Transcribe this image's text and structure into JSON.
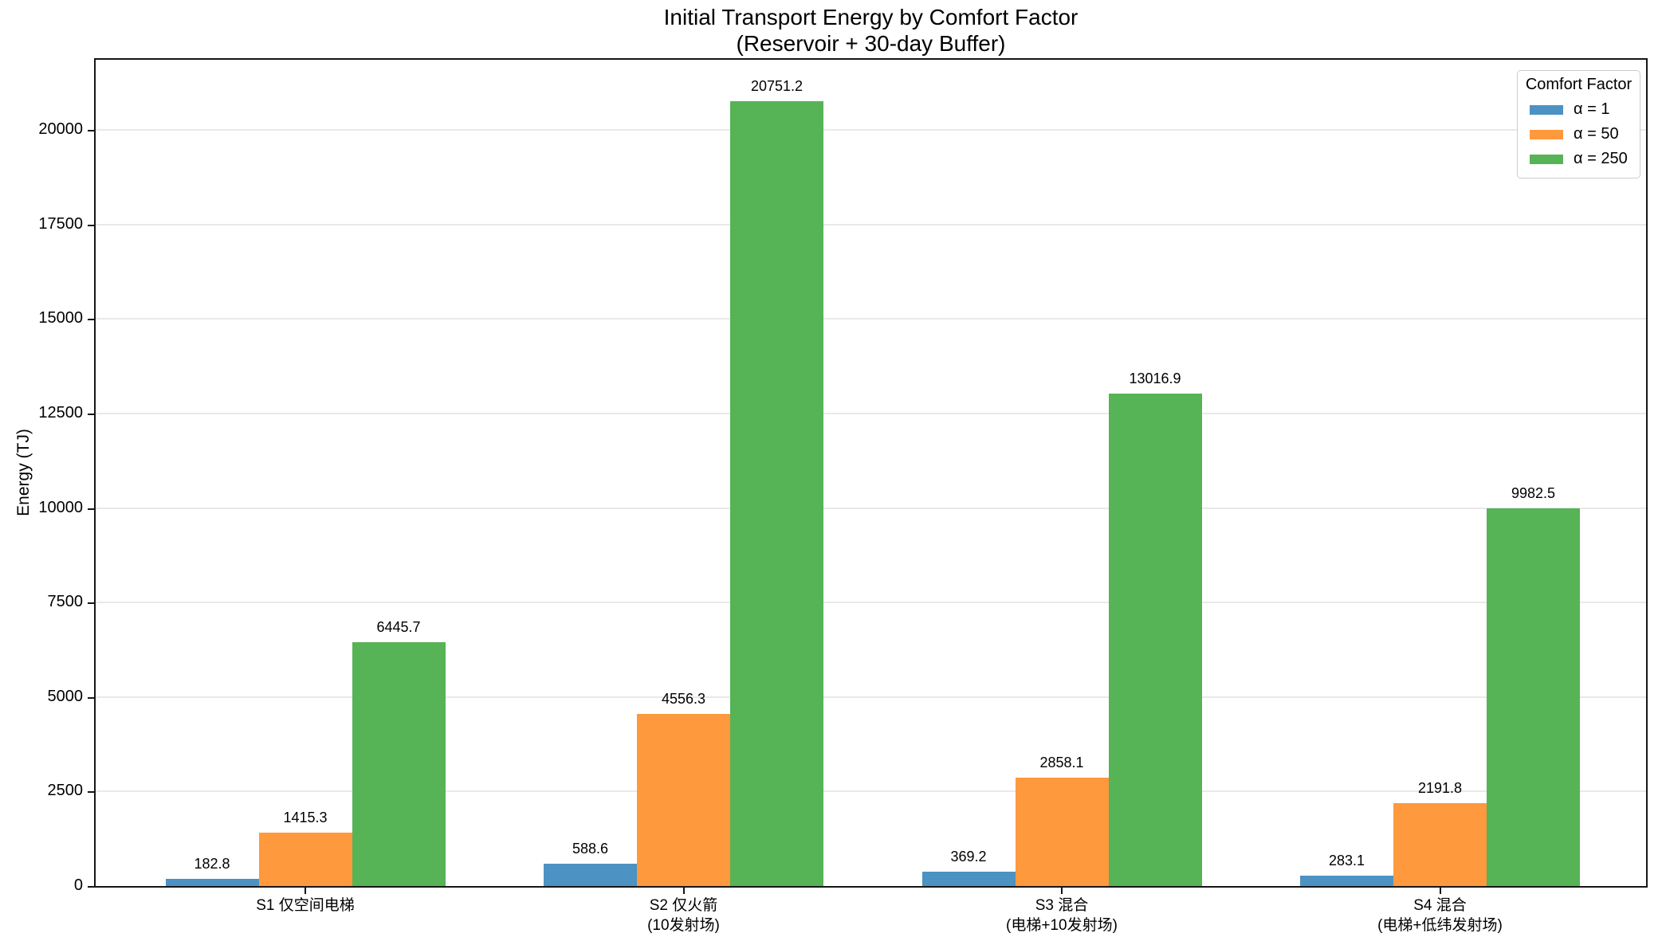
{
  "title": {
    "line1": "Initial Transport Energy by Comfort Factor",
    "line2": "(Reservoir + 30-day Buffer)"
  },
  "ylabel": "Energy (TJ)",
  "legend": {
    "title": "Comfort Factor",
    "entries": [
      {
        "label": "α = 1",
        "color": "#4C92C3"
      },
      {
        "label": "α = 50",
        "color": "#FF993E"
      },
      {
        "label": "α = 250",
        "color": "#56B356"
      }
    ]
  },
  "chart_data": {
    "type": "bar",
    "title": "Initial Transport Energy by Comfort Factor\n(Reservoir + 30-day Buffer)",
    "xlabel": "",
    "ylabel": "Energy (TJ)",
    "categories": [
      {
        "lines": [
          "S1 仅空间电梯"
        ]
      },
      {
        "lines": [
          "S2 仅火箭",
          "(10发射场)"
        ]
      },
      {
        "lines": [
          "S3 混合",
          "(电梯+10发射场)"
        ]
      },
      {
        "lines": [
          "S4 混合",
          "(电梯+低纬发射场)"
        ]
      }
    ],
    "series": [
      {
        "name": "α = 1",
        "color": "#4C92C3",
        "values": [
          182.8,
          588.6,
          369.2,
          283.1
        ]
      },
      {
        "name": "α = 50",
        "color": "#FF993E",
        "values": [
          1415.3,
          4556.3,
          2858.1,
          2191.8
        ]
      },
      {
        "name": "α = 250",
        "color": "#56B356",
        "values": [
          6445.7,
          20751.2,
          13016.9,
          9982.5
        ]
      }
    ],
    "value_labels": [
      [
        "182.8",
        "588.6",
        "369.2",
        "283.1"
      ],
      [
        "1415.3",
        "4556.3",
        "2858.1",
        "2191.8"
      ],
      [
        "6445.7",
        "20751.2",
        "13016.9",
        "9982.5"
      ]
    ],
    "ylim": [
      0,
      21855
    ],
    "yticks": [
      0,
      2500,
      5000,
      7500,
      10000,
      12500,
      15000,
      17500,
      20000
    ],
    "grid": true,
    "grid_color": "#e9e9e9",
    "legend_title": "Comfort Factor",
    "legend_position": "upper right"
  }
}
